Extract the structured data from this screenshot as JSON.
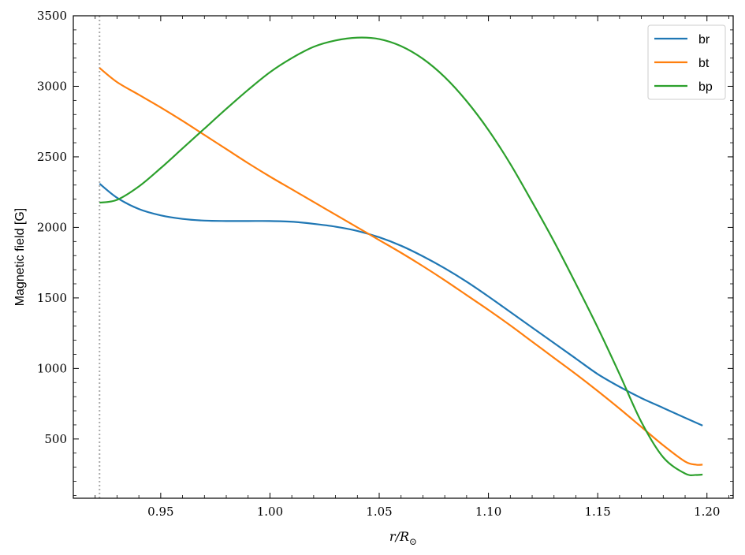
{
  "chart_data": {
    "type": "line",
    "xlabel": "r/R_⊙",
    "ylabel": "Magnetic field [G]",
    "xlim": [
      0.91,
      1.212
    ],
    "ylim": [
      80,
      3500
    ],
    "xticks": [
      "0.95",
      "1.00",
      "1.05",
      "1.10",
      "1.15",
      "1.20"
    ],
    "yticks": [
      "500",
      "1000",
      "1500",
      "2000",
      "2500",
      "3000",
      "3500"
    ],
    "vline": {
      "x": 0.922,
      "style": "dotted",
      "color": "#aaaaaa"
    },
    "legend_position": "top-right",
    "grid": false,
    "series": [
      {
        "name": "br",
        "color": "#1f77b4",
        "points": [
          [
            0.922,
            2310
          ],
          [
            0.93,
            2210
          ],
          [
            0.94,
            2130
          ],
          [
            0.95,
            2085
          ],
          [
            0.96,
            2060
          ],
          [
            0.97,
            2048
          ],
          [
            0.98,
            2045
          ],
          [
            0.99,
            2045
          ],
          [
            1.0,
            2045
          ],
          [
            1.01,
            2040
          ],
          [
            1.02,
            2025
          ],
          [
            1.03,
            2005
          ],
          [
            1.04,
            1975
          ],
          [
            1.05,
            1930
          ],
          [
            1.06,
            1870
          ],
          [
            1.07,
            1795
          ],
          [
            1.08,
            1710
          ],
          [
            1.09,
            1615
          ],
          [
            1.1,
            1510
          ],
          [
            1.11,
            1400
          ],
          [
            1.12,
            1290
          ],
          [
            1.13,
            1180
          ],
          [
            1.14,
            1070
          ],
          [
            1.15,
            960
          ],
          [
            1.16,
            870
          ],
          [
            1.17,
            790
          ],
          [
            1.18,
            720
          ],
          [
            1.19,
            650
          ],
          [
            1.198,
            595
          ]
        ]
      },
      {
        "name": "bt",
        "color": "#ff7f0e",
        "points": [
          [
            0.922,
            3130
          ],
          [
            0.93,
            3030
          ],
          [
            0.94,
            2940
          ],
          [
            0.95,
            2850
          ],
          [
            0.96,
            2755
          ],
          [
            0.97,
            2655
          ],
          [
            0.98,
            2555
          ],
          [
            0.99,
            2455
          ],
          [
            1.0,
            2360
          ],
          [
            1.01,
            2270
          ],
          [
            1.02,
            2180
          ],
          [
            1.03,
            2090
          ],
          [
            1.04,
            2000
          ],
          [
            1.05,
            1910
          ],
          [
            1.06,
            1820
          ],
          [
            1.07,
            1725
          ],
          [
            1.08,
            1625
          ],
          [
            1.09,
            1520
          ],
          [
            1.1,
            1415
          ],
          [
            1.11,
            1305
          ],
          [
            1.12,
            1190
          ],
          [
            1.13,
            1075
          ],
          [
            1.14,
            960
          ],
          [
            1.15,
            840
          ],
          [
            1.16,
            715
          ],
          [
            1.17,
            585
          ],
          [
            1.18,
            455
          ],
          [
            1.19,
            340
          ],
          [
            1.195,
            318
          ],
          [
            1.198,
            318
          ]
        ]
      },
      {
        "name": "bp",
        "color": "#2ca02c",
        "points": [
          [
            0.922,
            2175
          ],
          [
            0.93,
            2195
          ],
          [
            0.94,
            2290
          ],
          [
            0.95,
            2420
          ],
          [
            0.96,
            2560
          ],
          [
            0.97,
            2700
          ],
          [
            0.98,
            2840
          ],
          [
            0.99,
            2975
          ],
          [
            1.0,
            3100
          ],
          [
            1.01,
            3200
          ],
          [
            1.02,
            3280
          ],
          [
            1.03,
            3325
          ],
          [
            1.04,
            3345
          ],
          [
            1.05,
            3335
          ],
          [
            1.06,
            3285
          ],
          [
            1.07,
            3195
          ],
          [
            1.08,
            3065
          ],
          [
            1.09,
            2895
          ],
          [
            1.1,
            2690
          ],
          [
            1.11,
            2450
          ],
          [
            1.12,
            2180
          ],
          [
            1.13,
            1900
          ],
          [
            1.14,
            1600
          ],
          [
            1.15,
            1290
          ],
          [
            1.16,
            960
          ],
          [
            1.17,
            620
          ],
          [
            1.18,
            370
          ],
          [
            1.19,
            255
          ],
          [
            1.195,
            245
          ],
          [
            1.198,
            248
          ]
        ]
      }
    ]
  }
}
